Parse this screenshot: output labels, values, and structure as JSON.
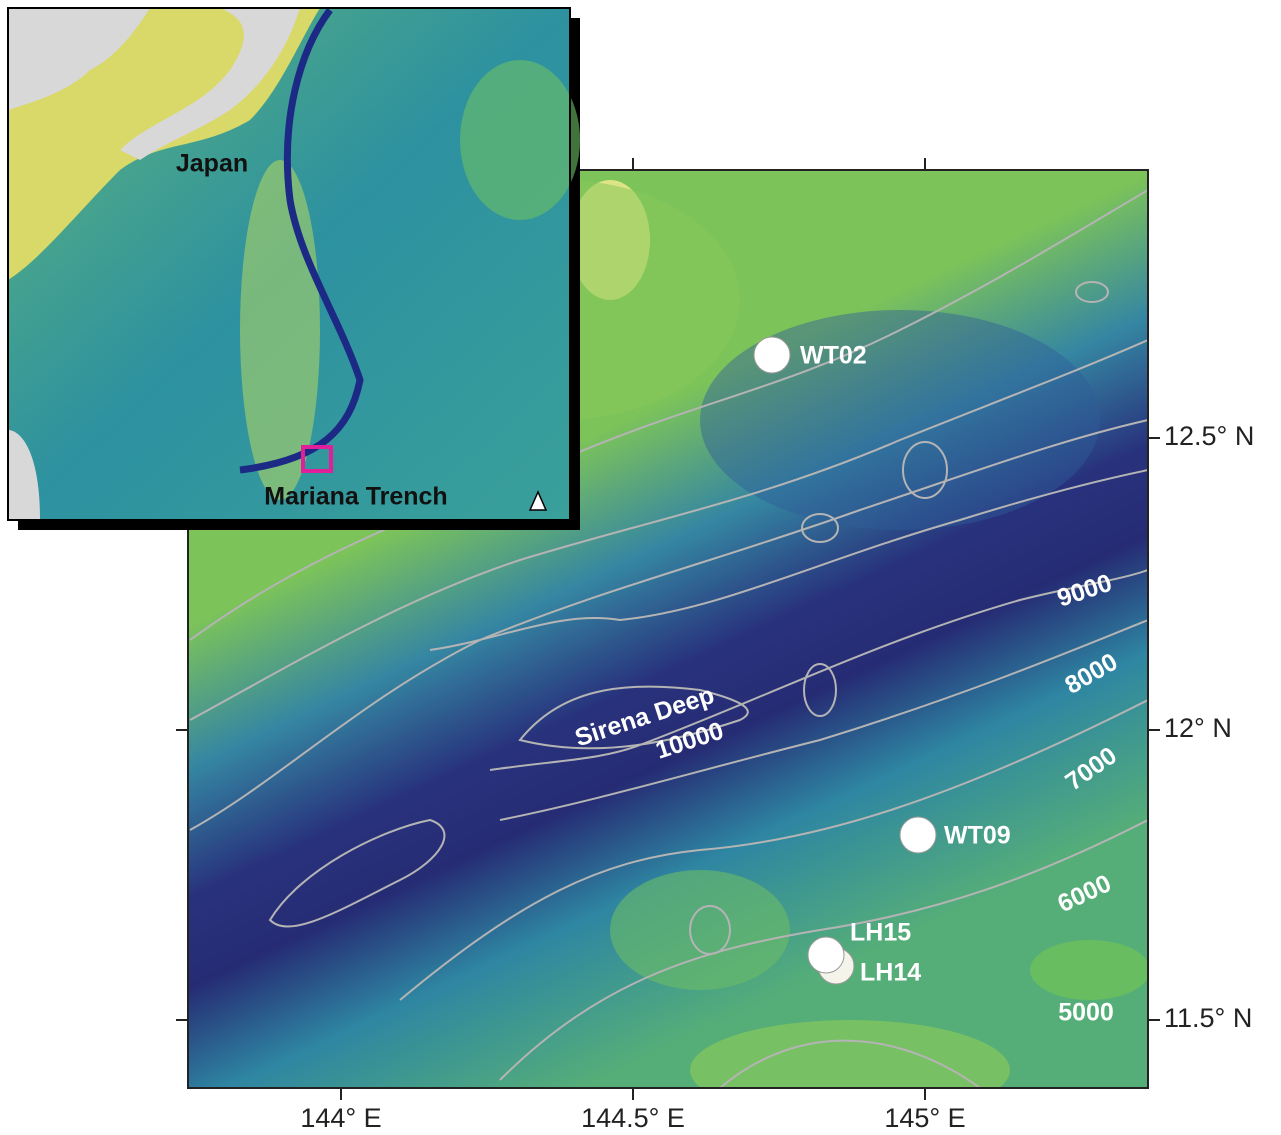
{
  "inset": {
    "labels": [
      "Japan",
      "Mariana Trench"
    ]
  },
  "main_map": {
    "stations": [
      "WT02",
      "WT09",
      "LH15",
      "LH14"
    ],
    "feature": "Sirena Deep",
    "contour_labels": [
      "10000",
      "9000",
      "8000",
      "7000",
      "6000",
      "5000"
    ],
    "lon_ticks": [
      "144° E",
      "144.5° E",
      "145° E"
    ],
    "lat_ticks": [
      "12.5° N",
      "12° N",
      "11.5° N"
    ]
  }
}
